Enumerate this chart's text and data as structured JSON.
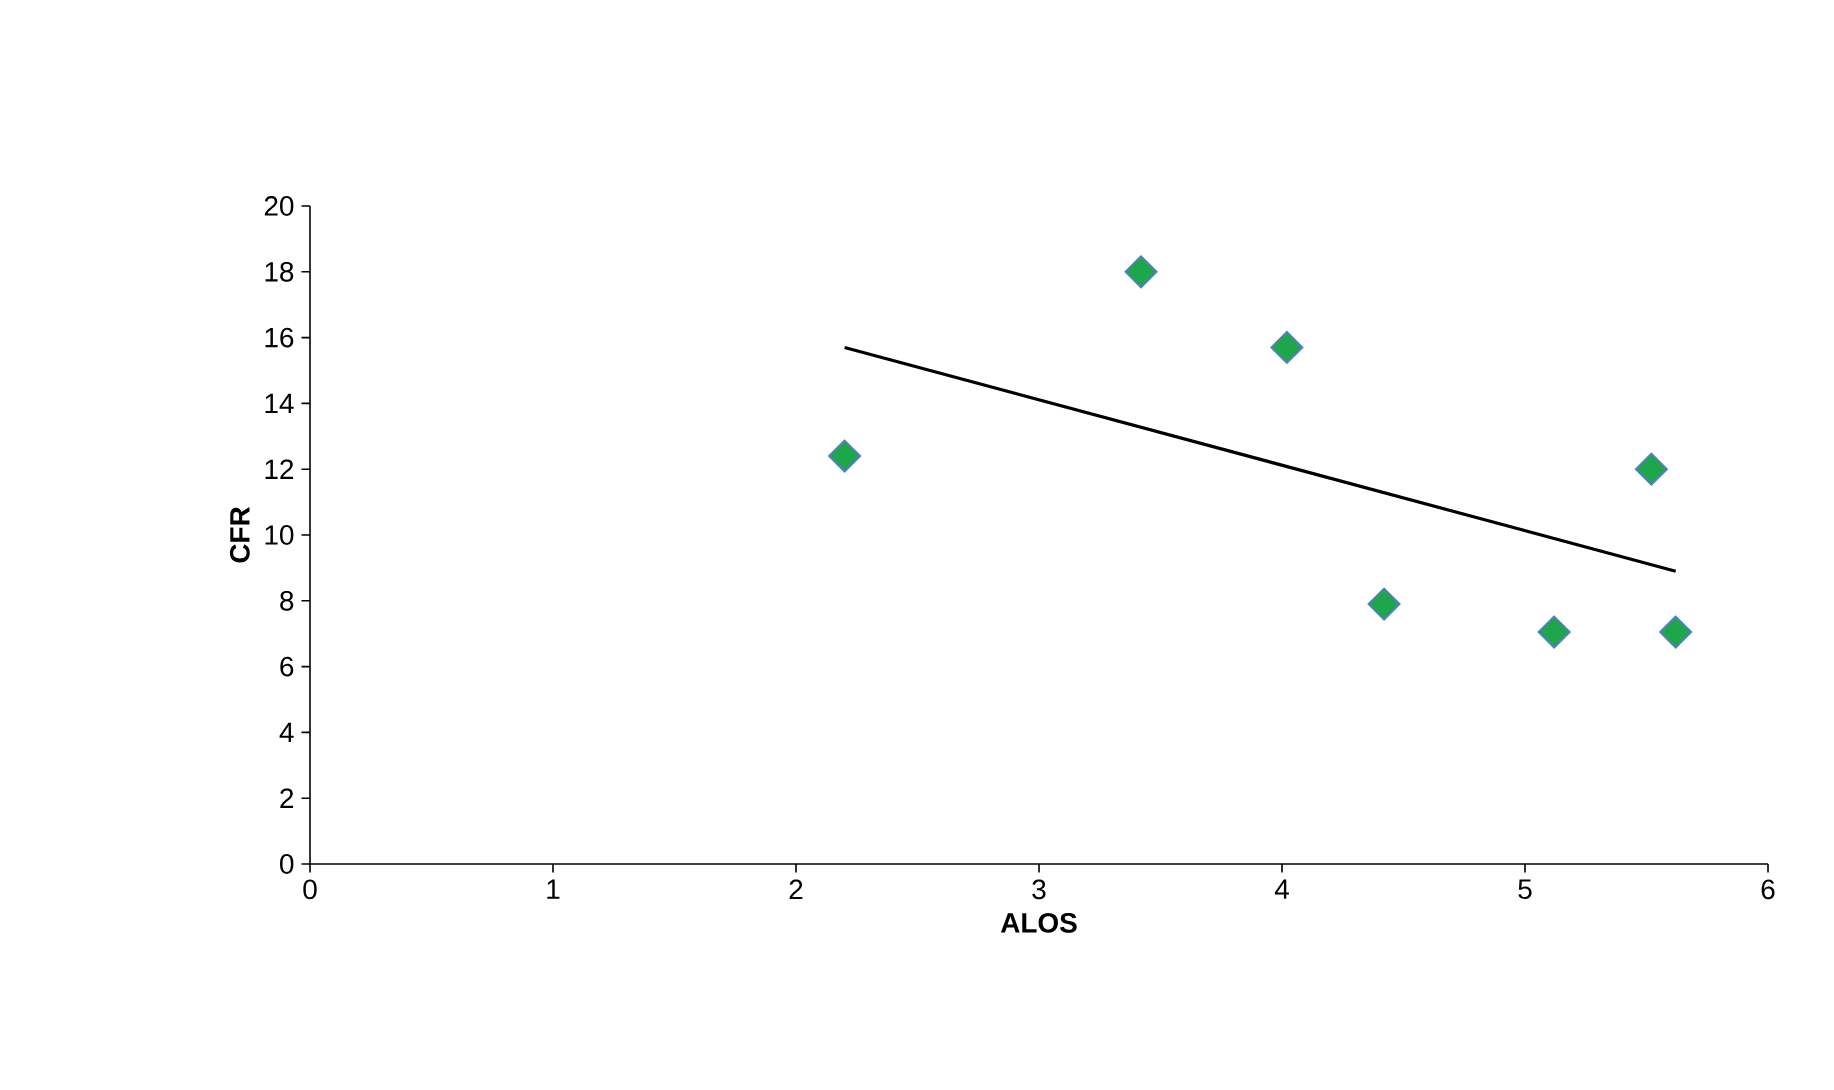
{
  "chart_data": {
    "type": "scatter",
    "xlabel": "ALOS",
    "ylabel": "CFR",
    "xlim": [
      0,
      6
    ],
    "xticks": [
      0,
      1,
      2,
      3,
      4,
      5,
      6
    ],
    "ylim": [
      0,
      20
    ],
    "yticks": [
      0,
      2,
      4,
      6,
      8,
      10,
      12,
      14,
      16,
      18,
      20
    ],
    "marker": "diamond",
    "grid": false,
    "series": [
      {
        "color": "#1ea64a",
        "x": [
          2.2,
          3.42,
          4.02,
          4.42,
          5.12,
          5.52,
          5.62
        ],
        "values": [
          12.4,
          18.0,
          15.7,
          7.9,
          7.05,
          12.0,
          7.05
        ]
      },
      {
        "type": "line",
        "color": "#000000",
        "marker": "none",
        "x": [
          2.2,
          5.62
        ],
        "values": [
          15.7,
          8.9
        ]
      }
    ]
  }
}
